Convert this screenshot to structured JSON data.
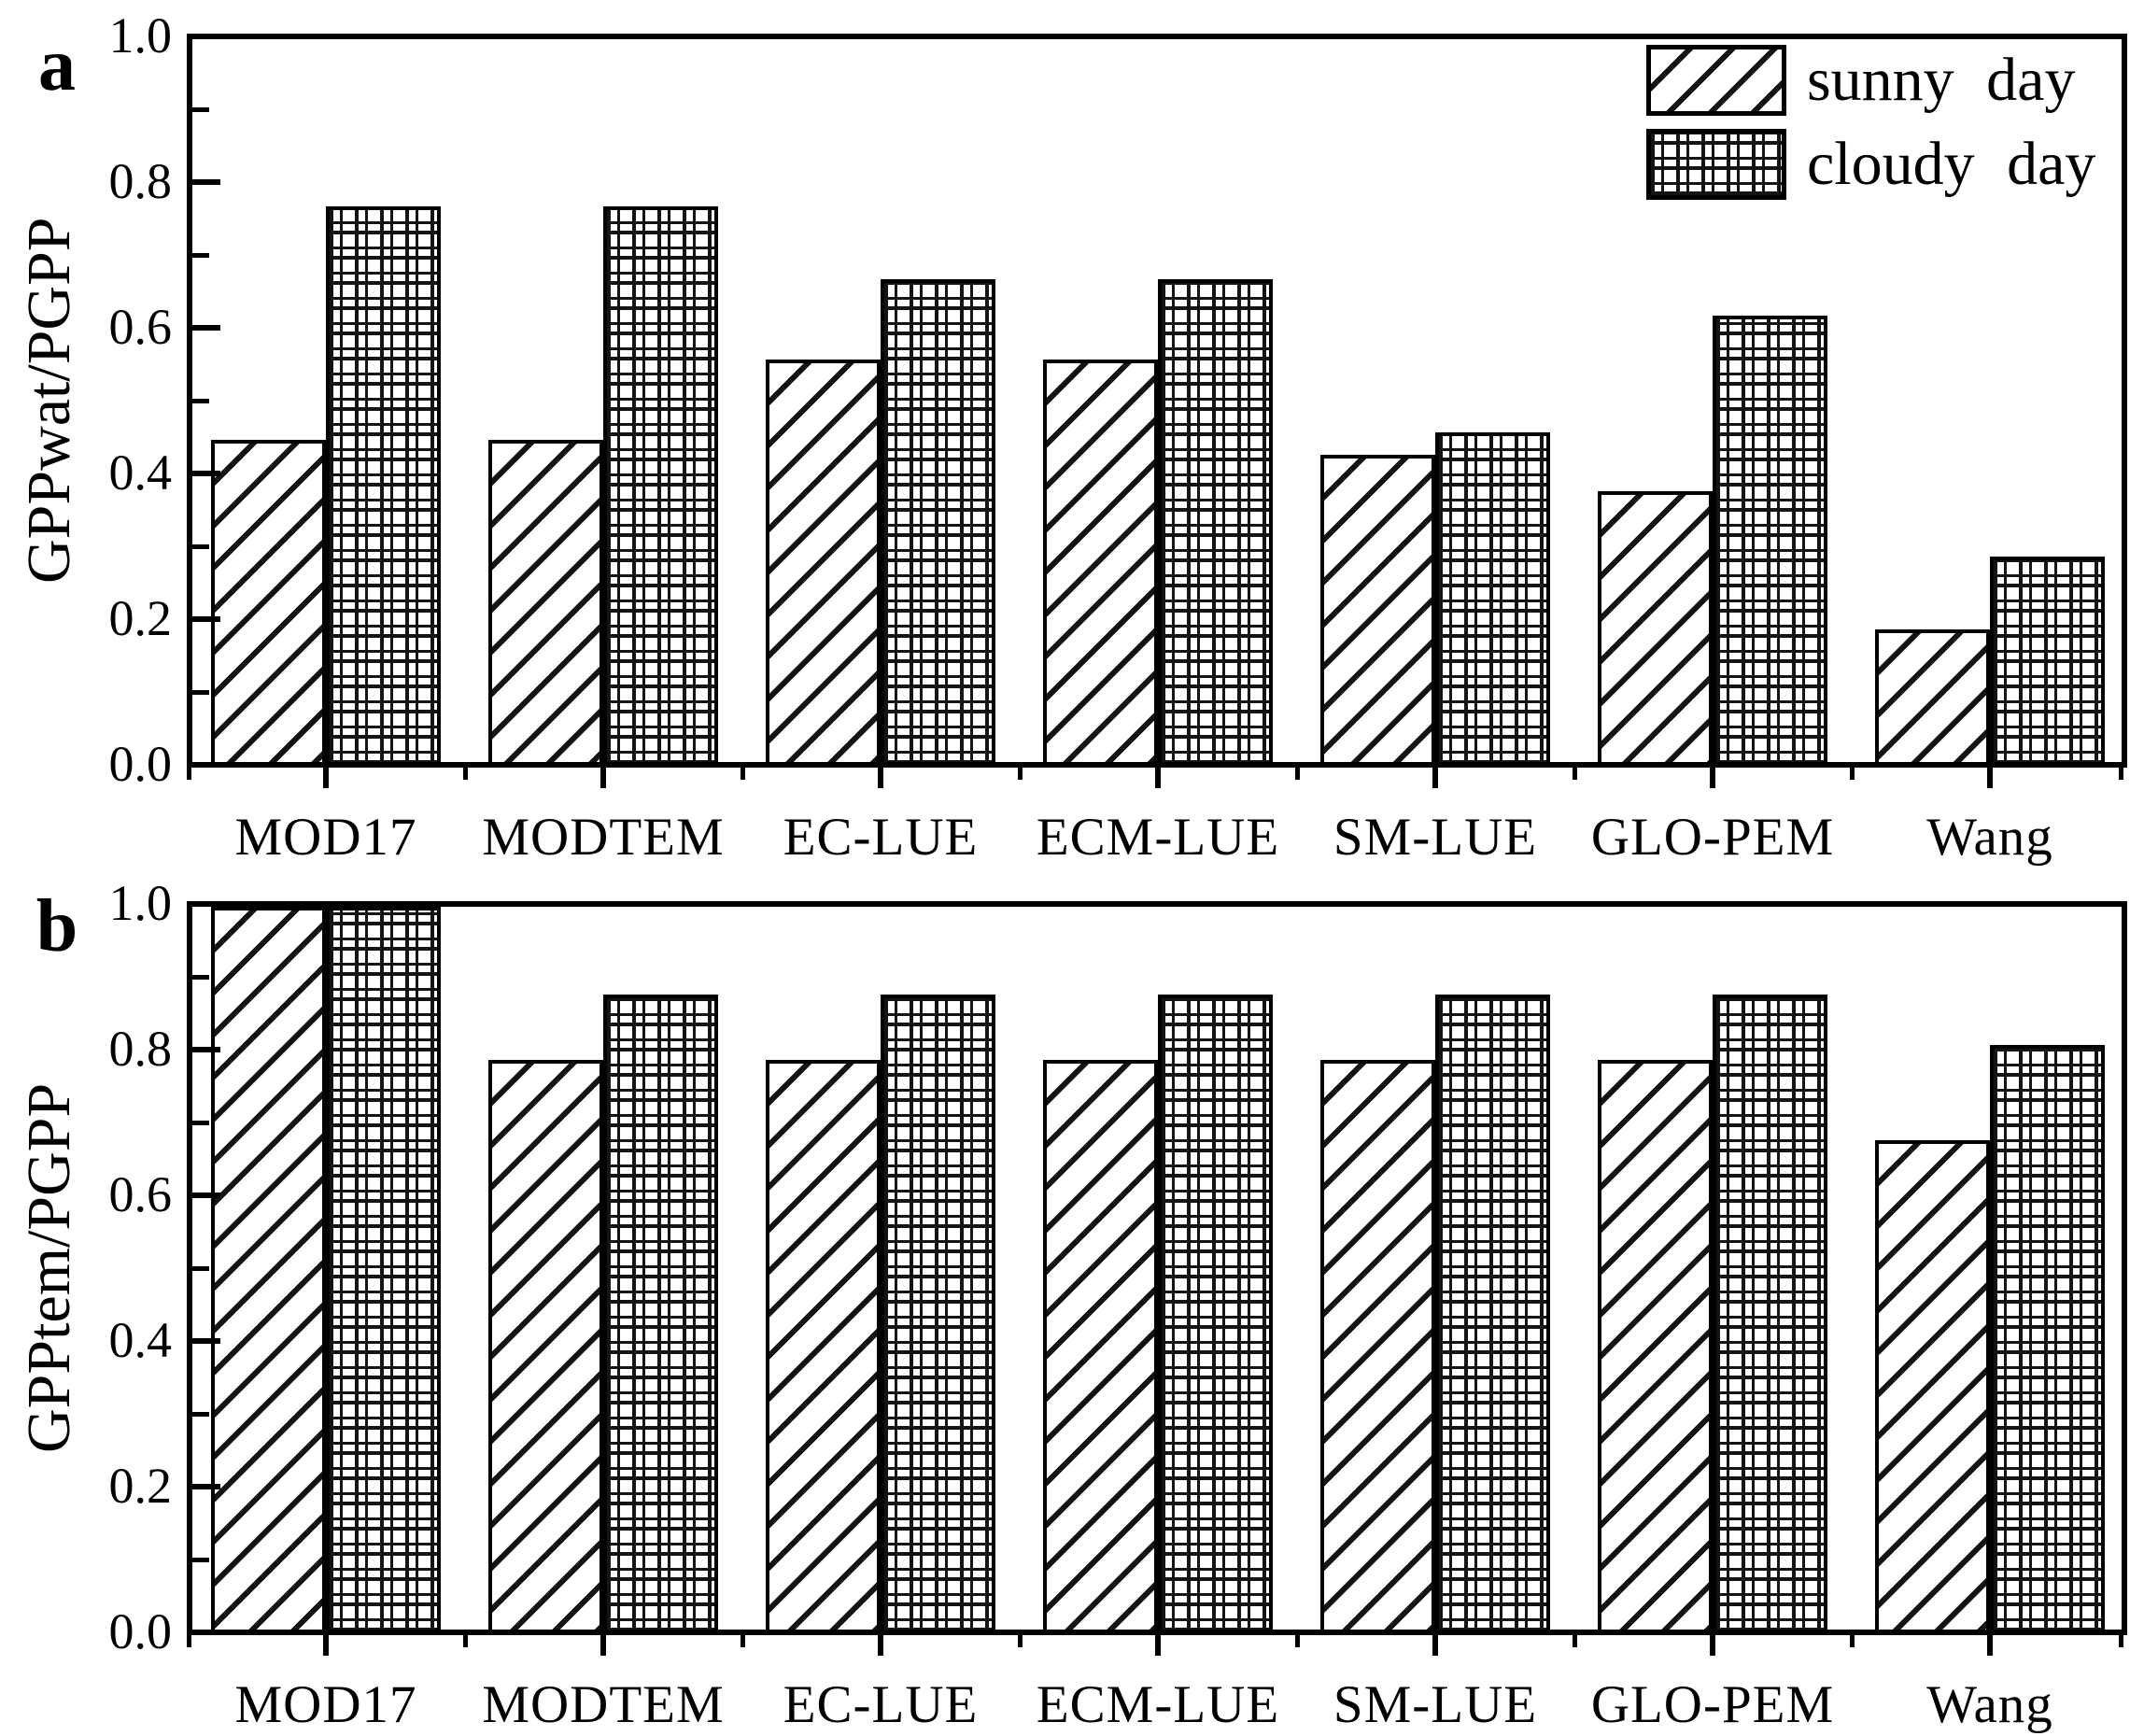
{
  "figure": {
    "background": "#ffffff",
    "colors": {
      "bar_fill": "#ffffff",
      "bar_edge": "#000000",
      "axis": "#000000",
      "text": "#000000"
    },
    "legend": {
      "position": "upper right of panel a",
      "items": [
        {
          "label": "sunny day",
          "pattern": "diagonal-hatch"
        },
        {
          "label": "cloudy day",
          "pattern": "cross-hatch"
        }
      ]
    }
  },
  "chart_data": [
    {
      "type": "bar",
      "panel_label": "a",
      "title": "",
      "xlabel": "",
      "ylabel": "GPPwat/PGPP",
      "categories": [
        "MOD17",
        "MODTEM",
        "EC-LUE",
        "ECM-LUE",
        "SM-LUE",
        "GLO-PEM",
        "Wang"
      ],
      "series": [
        {
          "name": "sunny day",
          "pattern": "diagonal-hatch",
          "values": [
            0.45,
            0.45,
            0.56,
            0.56,
            0.43,
            0.38,
            0.19
          ]
        },
        {
          "name": "cloudy day",
          "pattern": "cross-hatch",
          "values": [
            0.77,
            0.77,
            0.67,
            0.67,
            0.46,
            0.62,
            0.29
          ]
        }
      ],
      "ylim": [
        0.0,
        1.0
      ],
      "yticks": [
        0.0,
        0.2,
        0.4,
        0.6,
        0.8,
        1.0
      ],
      "minor_yticks": [
        0.1,
        0.3,
        0.5,
        0.7,
        0.9
      ],
      "grid": false,
      "legend_position": "upper right"
    },
    {
      "type": "bar",
      "panel_label": "b",
      "title": "",
      "xlabel": "",
      "ylabel": "GPPtem/PGPP",
      "categories": [
        "MOD17",
        "MODTEM",
        "EC-LUE",
        "ECM-LUE",
        "SM-LUE",
        "GLO-PEM",
        "Wang"
      ],
      "series": [
        {
          "name": "sunny day",
          "pattern": "diagonal-hatch",
          "values": [
            1.0,
            0.79,
            0.79,
            0.79,
            0.79,
            0.79,
            0.68
          ]
        },
        {
          "name": "cloudy day",
          "pattern": "cross-hatch",
          "values": [
            1.0,
            0.88,
            0.88,
            0.88,
            0.88,
            0.88,
            0.81
          ]
        }
      ],
      "ylim": [
        0.0,
        1.0
      ],
      "yticks": [
        0.0,
        0.2,
        0.4,
        0.6,
        0.8,
        1.0
      ],
      "minor_yticks": [
        0.1,
        0.3,
        0.5,
        0.7,
        0.9
      ],
      "grid": false,
      "legend_position": "none"
    }
  ]
}
